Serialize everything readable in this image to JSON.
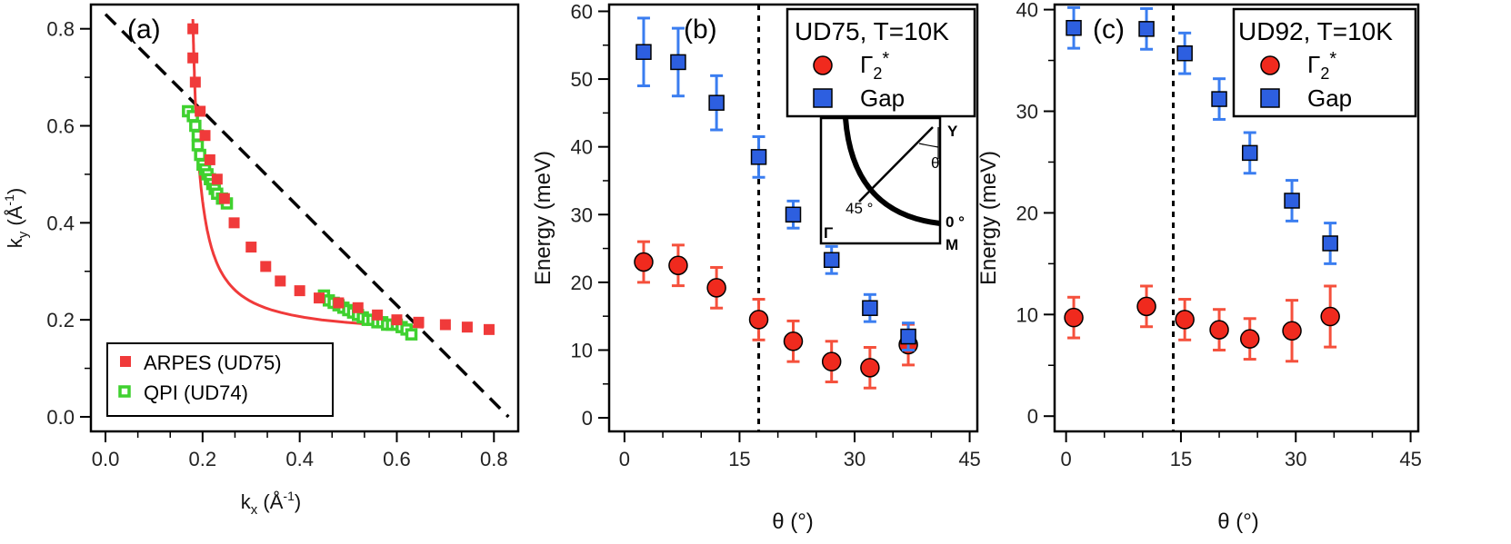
{
  "colors": {
    "arpes": "#f03a3a",
    "qpi": "#3fd12f",
    "gamma": "#f02a1e",
    "gamma_err": "#f5503c",
    "gap": "#2d5fe0",
    "gap_err": "#3a7df0",
    "line": "#000000"
  },
  "chart_data": [
    {
      "panel": "(a)",
      "type": "scatter",
      "xlabel_main": "k",
      "xlabel_sub": "x",
      "xlabel_rest": " (Å",
      "xlabel_sup": "-1",
      "xlabel_close": ")",
      "ylabel_main": "k",
      "ylabel_sub": "y",
      "ylabel_rest": " (Å",
      "ylabel_sup": "-1",
      "ylabel_close": ")",
      "xlim": [
        -0.03,
        0.85
      ],
      "ylim": [
        -0.03,
        0.85
      ],
      "xticks": [
        0.0,
        0.2,
        0.4,
        0.6,
        0.8
      ],
      "yticks": [
        0.0,
        0.2,
        0.4,
        0.6,
        0.8
      ],
      "xtick_labels": [
        "0.0",
        "0.2",
        "0.4",
        "0.6",
        "0.8"
      ],
      "ytick_labels": [
        "0.0",
        "0.2",
        "0.4",
        "0.6",
        "0.8"
      ],
      "series": [
        {
          "name": "ARPES (UD75)",
          "marker": "square",
          "x": [
            0.18,
            0.18,
            0.185,
            0.195,
            0.205,
            0.215,
            0.23,
            0.245,
            0.265,
            0.3,
            0.33,
            0.36,
            0.4,
            0.44,
            0.48,
            0.52,
            0.56,
            0.6,
            0.645,
            0.7,
            0.745,
            0.79
          ],
          "y": [
            0.8,
            0.74,
            0.69,
            0.63,
            0.58,
            0.53,
            0.49,
            0.45,
            0.4,
            0.35,
            0.31,
            0.28,
            0.26,
            0.245,
            0.235,
            0.225,
            0.21,
            0.2,
            0.195,
            0.19,
            0.185,
            0.18
          ]
        },
        {
          "name": "QPI (UD74)",
          "marker": "open-square",
          "x": [
            0.17,
            0.18,
            0.185,
            0.19,
            0.19,
            0.195,
            0.2,
            0.205,
            0.21,
            0.215,
            0.22,
            0.225,
            0.23,
            0.24,
            0.25,
            0.45,
            0.46,
            0.47,
            0.48,
            0.49,
            0.5,
            0.51,
            0.52,
            0.53,
            0.54,
            0.55,
            0.56,
            0.57,
            0.58,
            0.59,
            0.6,
            0.61,
            0.62,
            0.63
          ],
          "y": [
            0.63,
            0.62,
            0.6,
            0.58,
            0.56,
            0.54,
            0.52,
            0.51,
            0.5,
            0.49,
            0.48,
            0.47,
            0.46,
            0.45,
            0.44,
            0.25,
            0.24,
            0.235,
            0.23,
            0.225,
            0.22,
            0.215,
            0.21,
            0.205,
            0.2,
            0.2,
            0.195,
            0.195,
            0.19,
            0.19,
            0.19,
            0.185,
            0.18,
            0.17
          ]
        }
      ],
      "fit_curve": "hyperbola-like red fit",
      "diagonal": "dashed line from (0,0.83) to (0.83,0)",
      "legend_location": "bottom-left"
    },
    {
      "panel": "(b)",
      "type": "scatter",
      "xlabel": "θ (°)",
      "ylabel": "Energy (meV)",
      "xlim": [
        -2,
        46
      ],
      "ylim": [
        -2,
        61
      ],
      "xticks": [
        0,
        15,
        30,
        45
      ],
      "xtick_labels": [
        "0",
        "15",
        "30",
        "45"
      ],
      "yticks": [
        0,
        10,
        20,
        30,
        40,
        50,
        60
      ],
      "ytick_labels": [
        "0",
        "10",
        "20",
        "30",
        "40",
        "50",
        "60"
      ],
      "legend_title": "UD75, T=10K",
      "vline_x": 17.5,
      "series": [
        {
          "name": "Γ",
          "name_sub": "2",
          "name_sup": "*",
          "marker": "circle",
          "x": [
            2.5,
            7.0,
            12.0,
            17.5,
            22.0,
            27.0,
            32.0,
            37.0
          ],
          "y": [
            23,
            22.5,
            19.2,
            14.5,
            11.3,
            8.3,
            7.4,
            10.8
          ],
          "err": [
            3,
            3,
            3,
            3,
            3,
            3,
            3,
            3
          ]
        },
        {
          "name": "Gap",
          "marker": "square",
          "x": [
            2.5,
            7.0,
            12.0,
            17.5,
            22.0,
            27.0,
            32.0,
            37.0
          ],
          "y": [
            54,
            52.5,
            46.5,
            38.5,
            30,
            23.3,
            16.2,
            12
          ],
          "err": [
            5,
            5,
            4,
            3,
            2,
            2,
            2,
            2
          ]
        }
      ],
      "inset": {
        "labels": [
          "Y",
          "θ",
          "45 °",
          "Γ",
          "0 °",
          "M"
        ]
      },
      "legend_location": "top-right"
    },
    {
      "panel": "(c)",
      "type": "scatter",
      "xlabel": "θ (°)",
      "ylabel": "Energy (meV)",
      "xlim": [
        -1.5,
        46
      ],
      "ylim": [
        -1.5,
        40.5
      ],
      "xticks": [
        0,
        15,
        30,
        45
      ],
      "xtick_labels": [
        "0",
        "15",
        "30",
        "45"
      ],
      "yticks": [
        0,
        10,
        20,
        30,
        40
      ],
      "ytick_labels": [
        "0",
        "10",
        "20",
        "30",
        "40"
      ],
      "legend_title": "UD92, T=10K",
      "vline_x": 14.0,
      "series": [
        {
          "name": "Γ",
          "name_sub": "2",
          "name_sup": "*",
          "marker": "circle",
          "x": [
            1.0,
            10.5,
            15.5,
            20.0,
            24.0,
            29.5,
            34.5
          ],
          "y": [
            9.7,
            10.8,
            9.5,
            8.5,
            7.6,
            8.4,
            9.8
          ],
          "err": [
            2,
            2,
            2,
            2,
            2,
            3,
            3
          ]
        },
        {
          "name": "Gap",
          "marker": "square",
          "x": [
            1.0,
            10.5,
            15.5,
            20.0,
            24.0,
            29.5,
            34.5
          ],
          "y": [
            38.2,
            38.1,
            35.7,
            31.2,
            25.9,
            21.2,
            17.0
          ],
          "err": [
            2,
            2,
            2,
            2,
            2,
            2,
            2
          ]
        }
      ],
      "legend_location": "top-right"
    }
  ]
}
